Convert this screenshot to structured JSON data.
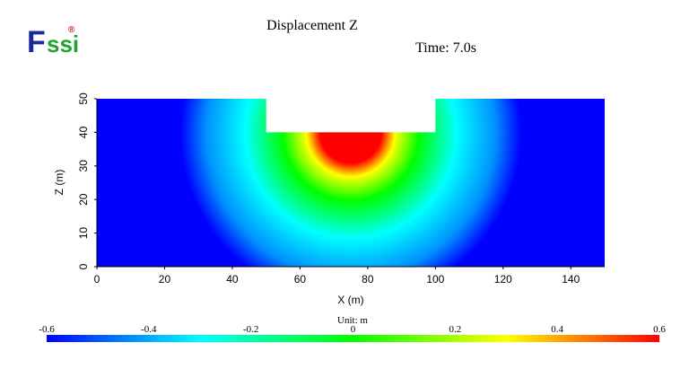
{
  "logo": {
    "text_f": "F",
    "text_ssi": "ssi",
    "reg": "®"
  },
  "chart_data": {
    "type": "heatmap",
    "title": "Displacement Z",
    "time_label": "Time: 7.0s",
    "xlabel": "X (m)",
    "ylabel": "Z (m)",
    "xlim": [
      0,
      150
    ],
    "ylim": [
      0,
      50
    ],
    "x_ticks": [
      0,
      20,
      40,
      60,
      80,
      100,
      120,
      140
    ],
    "y_ticks": [
      0,
      10,
      20,
      30,
      40,
      50
    ],
    "domain": {
      "excavation": {
        "x": [
          50,
          100
        ],
        "z": [
          40,
          50
        ]
      }
    },
    "field": {
      "description_values": "approx displacement: max 0.6 near (75, 40) decreasing radially to about -0.6 at base",
      "peak_value": 0.6,
      "peak_location": [
        75,
        40
      ],
      "min_value": -0.6
    },
    "colorbar": {
      "min": -0.6,
      "max": 0.6,
      "ticks": [
        "-0.6",
        "-0.4",
        "-0.2",
        "0",
        "0.2",
        "0.4",
        "0.6"
      ],
      "unit_label": "Unit:   m",
      "colors": [
        "#0000ff",
        "#00ffff",
        "#00ff00",
        "#ffff00",
        "#ff0000"
      ]
    }
  }
}
